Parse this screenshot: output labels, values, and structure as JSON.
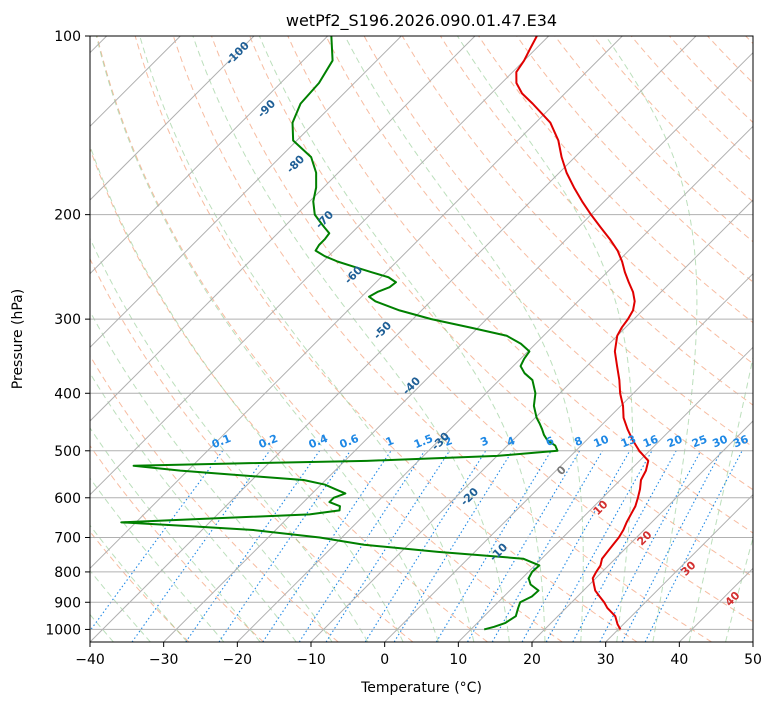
{
  "chart_data": {
    "type": "line",
    "chart_kind": "skew-t log-p",
    "title": "wetPf2_S196.2026.090.01.47.E34",
    "xlabel": "Temperature (°C)",
    "ylabel": "Pressure (hPa)",
    "xlim": [
      -40,
      50
    ],
    "ylim": [
      1050,
      100
    ],
    "yscale": "log",
    "grid": true,
    "x_ticks": [
      -40,
      -30,
      -20,
      -10,
      0,
      10,
      20,
      30,
      40,
      50
    ],
    "y_ticks": [
      100,
      200,
      300,
      400,
      500,
      600,
      700,
      800,
      900,
      1000
    ],
    "x_tick_labels": [
      "−40",
      "−30",
      "−20",
      "−10",
      "0",
      "10",
      "20",
      "30",
      "40",
      "50"
    ],
    "y_tick_labels": [
      "100",
      "200",
      "300",
      "400",
      "500",
      "600",
      "700",
      "800",
      "900",
      "1000"
    ],
    "series": [
      {
        "color": "#e00000",
        "pressure": [
          1000,
          980,
          950,
          920,
          900,
          880,
          860,
          840,
          820,
          800,
          780,
          760,
          740,
          720,
          700,
          680,
          660,
          640,
          620,
          600,
          580,
          560,
          540,
          520,
          500,
          480,
          460,
          440,
          420,
          400,
          380,
          360,
          340,
          320,
          310,
          300,
          290,
          280,
          270,
          260,
          250,
          240,
          230,
          220,
          210,
          200,
          190,
          180,
          170,
          160,
          150,
          140,
          130,
          125,
          120,
          115,
          110,
          105,
          100
        ],
        "temperature": [
          30.3,
          29.2,
          27.8,
          25.6,
          24.4,
          23.0,
          21.6,
          20.6,
          19.6,
          19.2,
          18.9,
          18.2,
          18.0,
          17.8,
          17.6,
          17.2,
          16.6,
          16.1,
          15.6,
          14.8,
          13.9,
          12.8,
          12.2,
          11.2,
          8.6,
          6.3,
          4.1,
          2.0,
          0.3,
          -1.8,
          -3.7,
          -5.9,
          -8.2,
          -10.0,
          -10.5,
          -10.8,
          -11.3,
          -12.3,
          -13.8,
          -15.7,
          -17.6,
          -19.4,
          -21.5,
          -24.1,
          -27.0,
          -30.0,
          -33.0,
          -36.0,
          -39.0,
          -41.8,
          -44.5,
          -48.0,
          -53.0,
          -55.8,
          -58.0,
          -59.5,
          -60.0,
          -60.8,
          -61.6
        ]
      },
      {
        "color": "#008000",
        "pressure": [
          1000,
          990,
          975,
          950,
          920,
          900,
          880,
          860,
          840,
          820,
          800,
          780,
          760,
          740,
          720,
          700,
          680,
          670,
          660,
          650,
          640,
          630,
          620,
          610,
          600,
          590,
          580,
          570,
          560,
          550,
          540,
          530,
          525,
          520,
          510,
          500,
          490,
          480,
          470,
          460,
          450,
          440,
          420,
          400,
          380,
          370,
          360,
          350,
          340,
          330,
          320,
          310,
          300,
          290,
          280,
          275,
          270,
          265,
          260,
          255,
          250,
          245,
          240,
          235,
          230,
          225,
          220,
          215,
          210,
          205,
          200,
          190,
          180,
          170,
          160,
          150,
          140,
          130,
          120,
          110,
          100
        ],
        "dewpoint": [
          11.8,
          12.8,
          13.8,
          14.3,
          13.5,
          13.0,
          13.8,
          13.9,
          12.0,
          10.9,
          10.5,
          10.6,
          7.5,
          -5.0,
          -16.0,
          -23.0,
          -33.0,
          -42.0,
          -52.0,
          -40.0,
          -27.5,
          -24.0,
          -24.5,
          -26.5,
          -26.5,
          -25.5,
          -27.5,
          -29.5,
          -33.0,
          -42.0,
          -51.0,
          -58.0,
          -44.0,
          -27.0,
          -10.0,
          -2.5,
          -3.5,
          -5.3,
          -6.5,
          -7.5,
          -8.6,
          -9.8,
          -11.8,
          -13.3,
          -15.5,
          -17.5,
          -19.0,
          -19.5,
          -19.8,
          -22.0,
          -25.0,
          -31.0,
          -37.5,
          -43.0,
          -47.5,
          -49.0,
          -48.5,
          -47.5,
          -47.3,
          -49.0,
          -52.0,
          -55.0,
          -58.0,
          -60.5,
          -62.5,
          -62.8,
          -62.8,
          -63.0,
          -64.5,
          -66.0,
          -67.5,
          -69.5,
          -71.0,
          -73.0,
          -75.8,
          -80.5,
          -83.0,
          -84.5,
          -84.8,
          -86.0,
          -89.5
        ]
      }
    ],
    "dry_adiabat_labels": [
      "-100",
      "-90",
      "-80",
      "-70",
      "-60",
      "-50",
      "-40",
      "-30",
      "-20",
      "-10",
      "0"
    ],
    "moist_adiabat_labels": [
      "10",
      "20",
      "30",
      "40"
    ],
    "mixing_ratio_labels": [
      "0.1",
      "0.2",
      "0.4",
      "0.6",
      "1",
      "1.5",
      "2",
      "3",
      "4",
      "6",
      "8",
      "10",
      "13",
      "16",
      "20",
      "25",
      "30",
      "36"
    ]
  }
}
